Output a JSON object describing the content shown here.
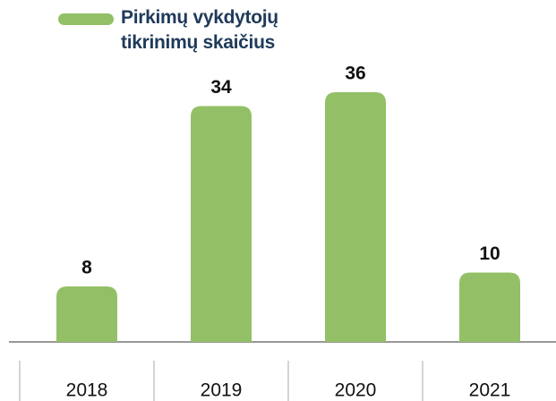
{
  "chart_data": {
    "type": "bar",
    "categories": [
      "2018",
      "2019",
      "2020",
      "2021"
    ],
    "series": [
      {
        "name": "Pirkimų vykdytojų tikrinimų skaičius",
        "color": "#93c066",
        "values": [
          8,
          34,
          36,
          10
        ]
      }
    ]
  }
}
